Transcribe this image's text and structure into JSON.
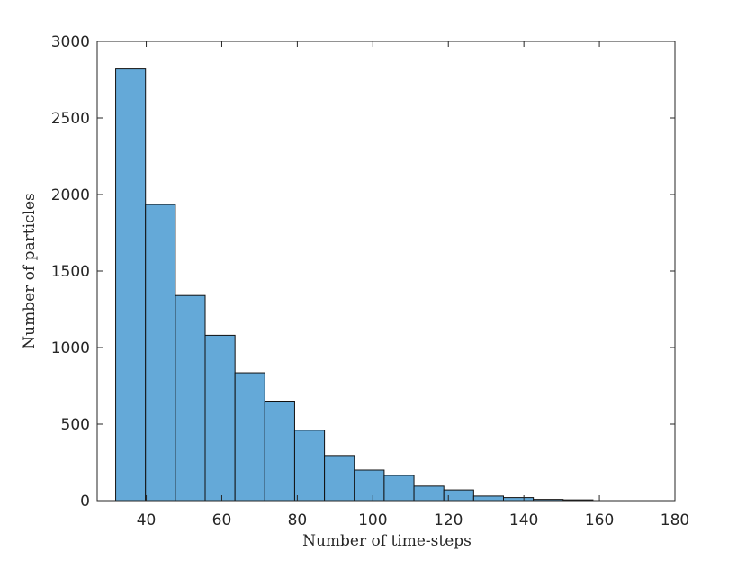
{
  "chart_data": {
    "type": "bar",
    "xlabel": "Number of time-steps",
    "ylabel": "Number of particles",
    "xlim": [
      27,
      180
    ],
    "ylim": [
      0,
      3000
    ],
    "xticks": [
      40,
      60,
      80,
      100,
      120,
      140,
      160,
      180
    ],
    "yticks": [
      0,
      500,
      1000,
      1500,
      2000,
      2500,
      3000
    ],
    "bin_edges": [
      31.9,
      39.8,
      47.7,
      55.6,
      63.5,
      71.4,
      79.3,
      87.2,
      95.1,
      103.0,
      110.9,
      118.8,
      126.7,
      134.6,
      142.5,
      150.4,
      158.3
    ],
    "values": [
      2820,
      1935,
      1340,
      1080,
      835,
      650,
      460,
      295,
      200,
      165,
      95,
      70,
      30,
      20,
      8,
      5
    ],
    "colors": {
      "bar": "#64a9d8",
      "edge": "#111111"
    }
  }
}
